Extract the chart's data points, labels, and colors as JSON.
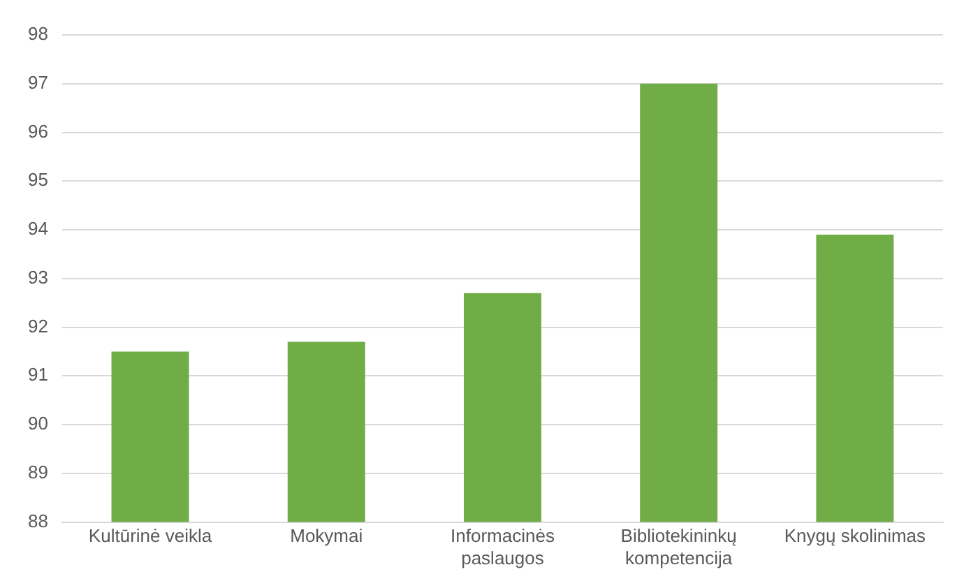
{
  "chart_data": {
    "type": "bar",
    "categories": [
      "Kultūrinė veikla",
      "Mokymai",
      "Informacinės paslaugos",
      "Bibliotekininkų kompetencija",
      "Knygų skolinimas"
    ],
    "values": [
      91.5,
      91.7,
      92.7,
      97.0,
      93.9
    ],
    "color": "#70ad47",
    "ylim": [
      88,
      98
    ],
    "yticks": [
      88,
      89,
      90,
      91,
      92,
      93,
      94,
      95,
      96,
      97,
      98
    ],
    "grid": "y"
  }
}
